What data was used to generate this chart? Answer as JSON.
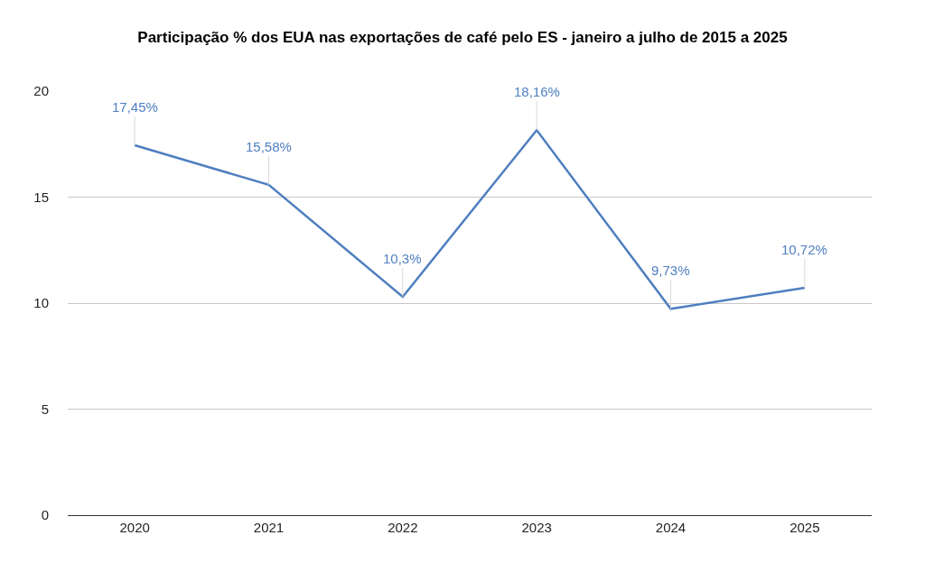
{
  "chart_data": {
    "type": "line",
    "title": "Participação % dos EUA nas exportações de café pelo ES - janeiro a julho de 2015 a 2025",
    "categories": [
      "2020",
      "2021",
      "2022",
      "2023",
      "2024",
      "2025"
    ],
    "series": [
      {
        "color": "#4f7fc0",
        "values": [
          17.45,
          15.58,
          10.3,
          18.16,
          9.73,
          10.72
        ],
        "value_labels": [
          "17,45%",
          "15,58%",
          "10,3%",
          "18,16%",
          "9,73%",
          "10,72%"
        ]
      }
    ],
    "ylim": [
      0,
      20
    ],
    "yticks": [
      0,
      5,
      10,
      15,
      20
    ],
    "grid": "y",
    "marker": "none",
    "line_style": "solid"
  }
}
